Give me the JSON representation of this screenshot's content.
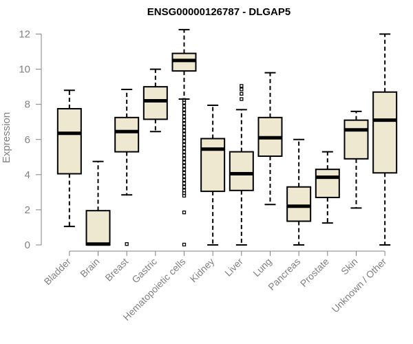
{
  "chart_data": {
    "type": "boxplot",
    "title": "ENSG00000126787 - DLGAP5",
    "ylabel": "Expression",
    "xlabel": "",
    "ylim": [
      0,
      12.4
    ],
    "yticks": [
      0,
      2,
      4,
      6,
      8,
      10,
      12
    ],
    "grid": false,
    "box_fill": "#efe8d0",
    "categories": [
      "Bladder",
      "Brain",
      "Breast",
      "Gastric",
      "Hematopoietic cells",
      "Kidney",
      "Liver",
      "Lung",
      "Pancreas",
      "Prostate",
      "Skin",
      "Unknown / Other"
    ],
    "series": [
      {
        "category": "Bladder",
        "min": 1.05,
        "q1": 4.05,
        "median": 6.35,
        "q3": 7.75,
        "max": 8.8,
        "outliers": []
      },
      {
        "category": "Brain",
        "min": 0.0,
        "q1": 0.0,
        "median": 0.05,
        "q3": 1.95,
        "max": 4.75,
        "outliers": []
      },
      {
        "category": "Breast",
        "min": 2.85,
        "q1": 5.3,
        "median": 6.45,
        "q3": 7.25,
        "max": 8.85,
        "outliers": [
          0.05
        ]
      },
      {
        "category": "Gastric",
        "min": 6.45,
        "q1": 7.15,
        "median": 8.2,
        "q3": 9.0,
        "max": 10.0,
        "outliers": []
      },
      {
        "category": "Hematopoietic cells",
        "min": 8.3,
        "q1": 9.9,
        "median": 10.5,
        "q3": 10.9,
        "max": 12.25,
        "outliers": [
          8.25,
          8.1,
          7.9,
          7.7,
          7.5,
          7.3,
          7.1,
          6.9,
          6.7,
          6.5,
          6.3,
          6.1,
          5.9,
          5.7,
          5.5,
          5.3,
          5.1,
          4.9,
          4.7,
          4.5,
          4.3,
          4.1,
          3.9,
          3.7,
          3.5,
          3.3,
          3.1,
          2.95,
          2.8,
          1.85,
          0.02
        ]
      },
      {
        "category": "Kidney",
        "min": 0.0,
        "q1": 3.05,
        "median": 5.45,
        "q3": 6.05,
        "max": 7.95,
        "outliers": []
      },
      {
        "category": "Liver",
        "min": 0.0,
        "q1": 3.1,
        "median": 4.05,
        "q3": 5.3,
        "max": 7.7,
        "outliers": [
          8.3,
          8.6,
          8.85,
          9.05
        ]
      },
      {
        "category": "Lung",
        "min": 2.3,
        "q1": 5.05,
        "median": 6.1,
        "q3": 7.25,
        "max": 9.8,
        "outliers": []
      },
      {
        "category": "Pancreas",
        "min": 0.0,
        "q1": 1.35,
        "median": 2.2,
        "q3": 3.3,
        "max": 6.0,
        "outliers": []
      },
      {
        "category": "Prostate",
        "min": 1.25,
        "q1": 2.7,
        "median": 3.85,
        "q3": 4.3,
        "max": 5.3,
        "outliers": []
      },
      {
        "category": "Skin",
        "min": 2.1,
        "q1": 4.9,
        "median": 6.55,
        "q3": 7.1,
        "max": 7.6,
        "outliers": []
      },
      {
        "category": "Unknown / Other",
        "min": 0.0,
        "q1": 4.1,
        "median": 7.1,
        "q3": 8.7,
        "max": 12.0,
        "outliers": []
      }
    ]
  }
}
